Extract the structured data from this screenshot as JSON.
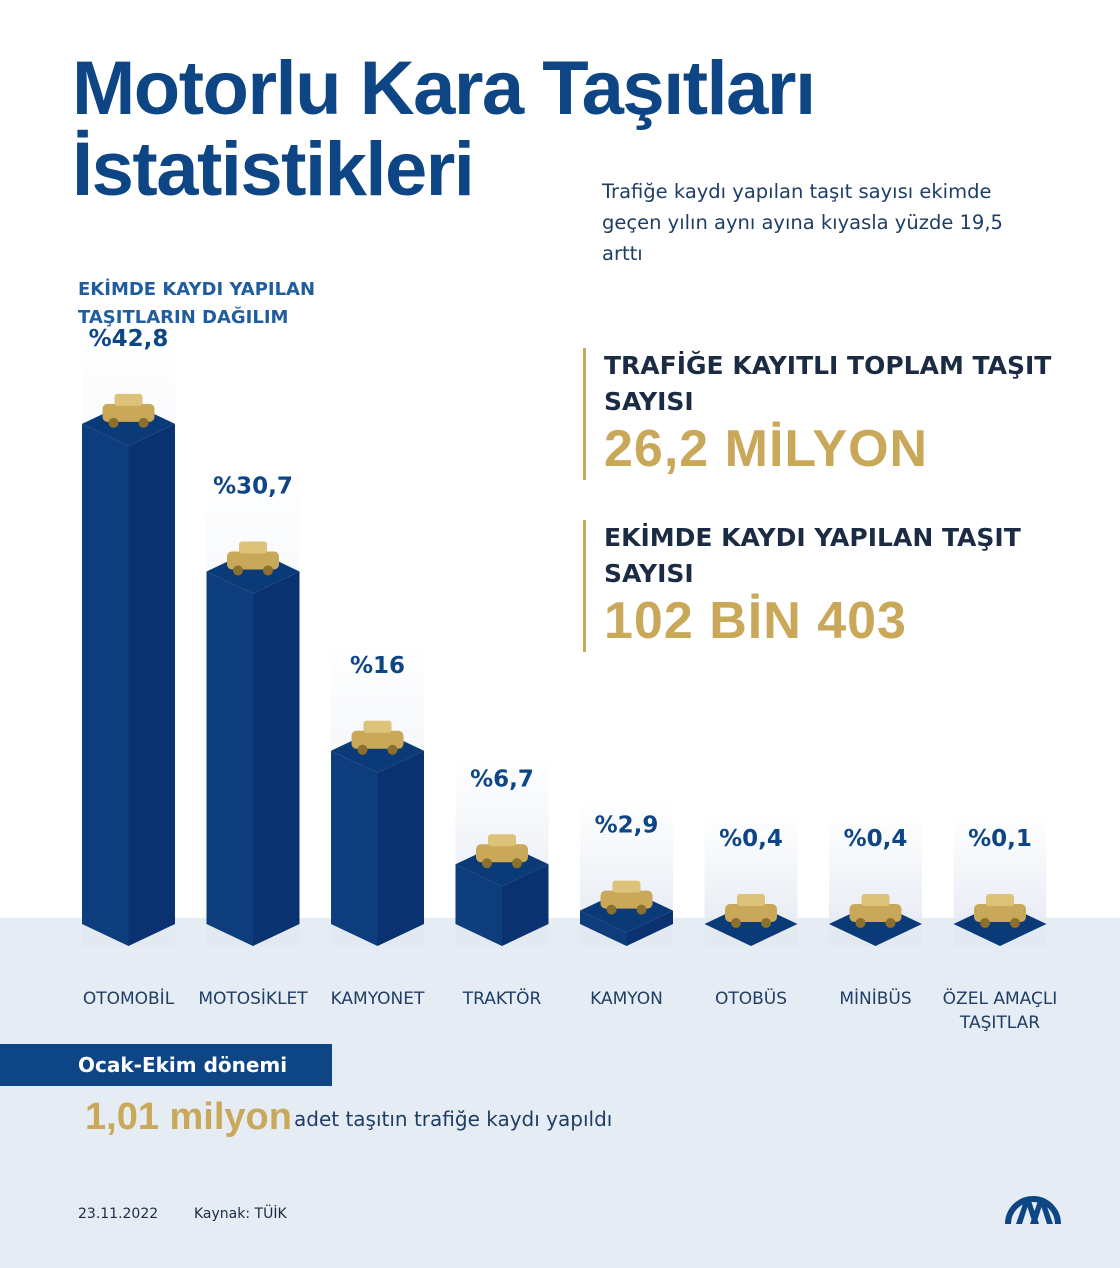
{
  "title_line1": "Motorlu Kara Taşıtları",
  "title_line2": "İstatistikleri",
  "subtitle": "Trafiğe kaydı yapılan taşıt sayısı ekimde geçen yılın aynı ayına kıyasla yüzde 19,5 arttı",
  "distribution_heading": "EKİMDE KAYDI YAPILAN TAŞITLARIN DAĞILIM",
  "stats": {
    "total_label": "TRAFİĞE KAYITLI TOPLAM TAŞIT SAYISI",
    "total_value": "26,2 MİLYON",
    "october_label": "EKİMDE KAYDI YAPILAN TAŞIT SAYISI",
    "october_value": "102 BİN 403"
  },
  "period": {
    "banner": "Ocak-Ekim dönemi",
    "value": "1,01 milyon",
    "text": "adet taşıtın trafiğe kaydı yapıldı"
  },
  "footer": {
    "date": "23.11.2022",
    "source": "Kaynak: TÜİK"
  },
  "colors": {
    "navy": "#0d4585",
    "gold": "#c9a959",
    "band": "#e6ecf3"
  },
  "chart_data": {
    "type": "bar",
    "categories": [
      "OTOMOBİL",
      "MOTOSİKLET",
      "KAMYONET",
      "TRAKTÖR",
      "KAMYON",
      "OTOBÜS",
      "MİNİBÜS",
      "ÖZEL AMAÇLI TAŞITLAR"
    ],
    "values": [
      42.8,
      30.7,
      16,
      6.7,
      2.9,
      0.4,
      0.4,
      0.1
    ],
    "value_labels": [
      "%42,8",
      "%30,7",
      "%16",
      "%6,7",
      "%2,9",
      "%0,4",
      "%0,4",
      "%0,1"
    ],
    "icons": [
      "car-icon",
      "motorcycle-icon",
      "van-icon",
      "tractor-icon",
      "truck-icon",
      "bus-icon",
      "minibus-icon",
      "special-vehicle-icon"
    ],
    "unit": "%",
    "title": "EKİMDE KAYDI YAPILAN TAŞITLARIN DAĞILIM"
  }
}
